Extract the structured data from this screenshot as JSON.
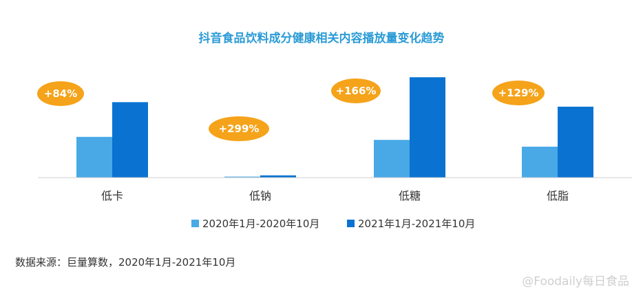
{
  "chart_data": {
    "type": "bar",
    "title": "抖音食品饮料成分健康相关内容播放量变化趋势",
    "categories": [
      "低卡",
      "低钠",
      "低糖",
      "低脂"
    ],
    "series": [
      {
        "name": "2020年1月-2020年10月",
        "values": [
          54,
          1,
          50,
          41
        ],
        "color": "#48a9e6"
      },
      {
        "name": "2021年1月-2021年10月",
        "values": [
          100,
          3,
          133,
          94
        ],
        "color": "#0a73d1"
      }
    ],
    "growth_labels": [
      "+84%",
      "+299%",
      "+166%",
      "+129%"
    ],
    "ylim": [
      0,
      135
    ],
    "grid": false,
    "legend_position": "bottom-center"
  },
  "source": "数据来源：巨量算数，2020年1月-2021年10月",
  "watermark": "@Foodaily每日食品",
  "colors": {
    "badge": "#f5a31a",
    "title": "#2b9bd6",
    "baseline": "#d0d0d0"
  }
}
